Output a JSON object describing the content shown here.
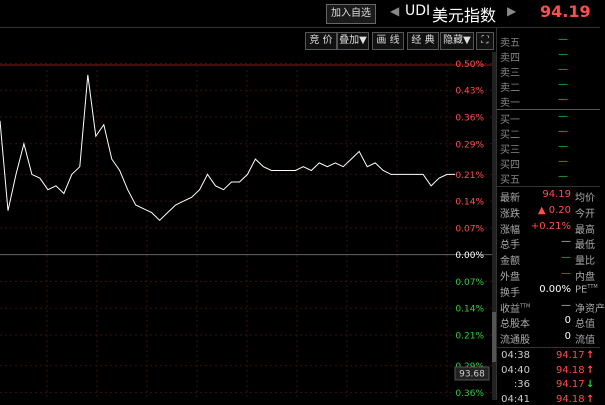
{
  "header": {
    "add_button": "加入自选",
    "code": "UDI",
    "name": "美元指数",
    "price": "94.19"
  },
  "toolbar": [
    "竞 价",
    "叠加▼",
    "画 线",
    "经 典",
    "隐藏▼"
  ],
  "chart_data": {
    "type": "line",
    "color": "#ffffff",
    "ylim": [
      -0.38,
      0.53
    ],
    "yticks": [
      {
        "value": 0.5,
        "label": "0.50%"
      },
      {
        "value": 0.43,
        "label": "0.43%"
      },
      {
        "value": 0.36,
        "label": "0.36%"
      },
      {
        "value": 0.29,
        "label": "0.29%"
      },
      {
        "value": 0.21,
        "label": "0.21%"
      },
      {
        "value": 0.14,
        "label": "0.14%"
      },
      {
        "value": 0.07,
        "label": "0.07%"
      },
      {
        "value": 0,
        "label": "0.00%"
      },
      {
        "value": -0.07,
        "label": "0.07%"
      },
      {
        "value": -0.14,
        "label": "0.14%"
      },
      {
        "value": -0.21,
        "label": "0.21%"
      },
      {
        "value": -0.29,
        "label": "0.29%"
      },
      {
        "value": -0.36,
        "label": "0.36%"
      }
    ],
    "values": [
      0.35,
      0.115,
      0.21,
      0.29,
      0.21,
      0.2,
      0.17,
      0.18,
      0.16,
      0.21,
      0.23,
      0.47,
      0.31,
      0.34,
      0.25,
      0.22,
      0.17,
      0.13,
      0.12,
      0.11,
      0.09,
      0.11,
      0.13,
      0.14,
      0.15,
      0.17,
      0.21,
      0.18,
      0.17,
      0.19,
      0.19,
      0.21,
      0.25,
      0.23,
      0.22,
      0.22,
      0.22,
      0.22,
      0.23,
      0.22,
      0.24,
      0.23,
      0.24,
      0.23,
      0.25,
      0.27,
      0.23,
      0.24,
      0.22,
      0.21,
      0.21,
      0.21,
      0.21,
      0.21,
      0.18,
      0.2,
      0.21,
      0.21
    ],
    "grid": true,
    "price_label": "93.68"
  },
  "order_book": {
    "sell": [
      {
        "label": "卖五",
        "value": "—"
      },
      {
        "label": "卖四",
        "value": "—"
      },
      {
        "label": "卖三",
        "value": "—"
      },
      {
        "label": "卖二",
        "value": "—"
      },
      {
        "label": "卖一",
        "value": "—"
      }
    ],
    "buy": [
      {
        "label": "买一",
        "value": "—"
      },
      {
        "label": "买二",
        "value": "—"
      },
      {
        "label": "买三",
        "value": "—"
      },
      {
        "label": "买四",
        "value": "—"
      },
      {
        "label": "买五",
        "value": "—"
      }
    ]
  },
  "stats": [
    {
      "label": "最新",
      "value": "94.19",
      "color": "#ff4d4d",
      "label2": "均价"
    },
    {
      "label": "涨跌",
      "value": "▲ 0.20",
      "color": "#ff4d4d",
      "label2": "今开"
    },
    {
      "label": "涨幅",
      "value": "+0.21%",
      "color": "#ff4d4d",
      "label2": "最高"
    },
    {
      "label": "总手",
      "value": "—",
      "color": "#cccccc",
      "label2": "最低"
    },
    {
      "label": "金额",
      "value": "—",
      "color": "#2ecc40",
      "label2": "量比"
    },
    {
      "label": "外盘",
      "value": "—",
      "color": "#ff4d4d",
      "label2": "内盘"
    },
    {
      "label": "换手",
      "value": "0.00%",
      "color": "#ffffff",
      "label2": "PE",
      "label2_sup": "TTM"
    },
    {
      "label": "收益",
      "label_sup": "TTM",
      "value": "—",
      "color": "#cccccc",
      "label2": "净资产"
    },
    {
      "label": "总股本",
      "value": "0",
      "color": "#ffffff",
      "label2": "总值"
    },
    {
      "label": "流通股",
      "value": "0",
      "color": "#ffffff",
      "label2": "流值"
    }
  ],
  "ticks": [
    {
      "time": "04:38",
      "price": "94.17",
      "arrow": "↑",
      "color": "#ff4d4d"
    },
    {
      "time": "04:40",
      "price": "94.18",
      "arrow": "↑",
      "color": "#ff4d4d"
    },
    {
      "time": ":36",
      "price": "94.17",
      "arrow": "↓",
      "color": "#2ecc40"
    },
    {
      "time": "04:41",
      "price": "94.18",
      "arrow": "↑",
      "color": "#ff4d4d"
    }
  ]
}
